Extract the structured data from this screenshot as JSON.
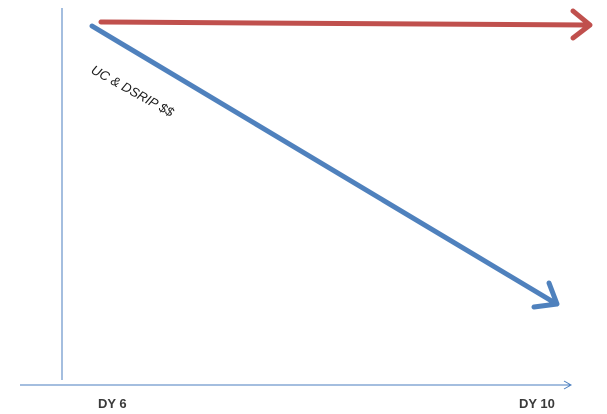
{
  "x_axis": {
    "start_label": "DY 6",
    "end_label": "DY 10"
  },
  "arrows": {
    "decline_label": "UC & DSRIP $$"
  },
  "colors": {
    "axis": "#4a7ebf",
    "flat_arrow": "#c0504d",
    "decline_arrow": "#4f81bd",
    "label_text": "#3a3a3a"
  }
}
